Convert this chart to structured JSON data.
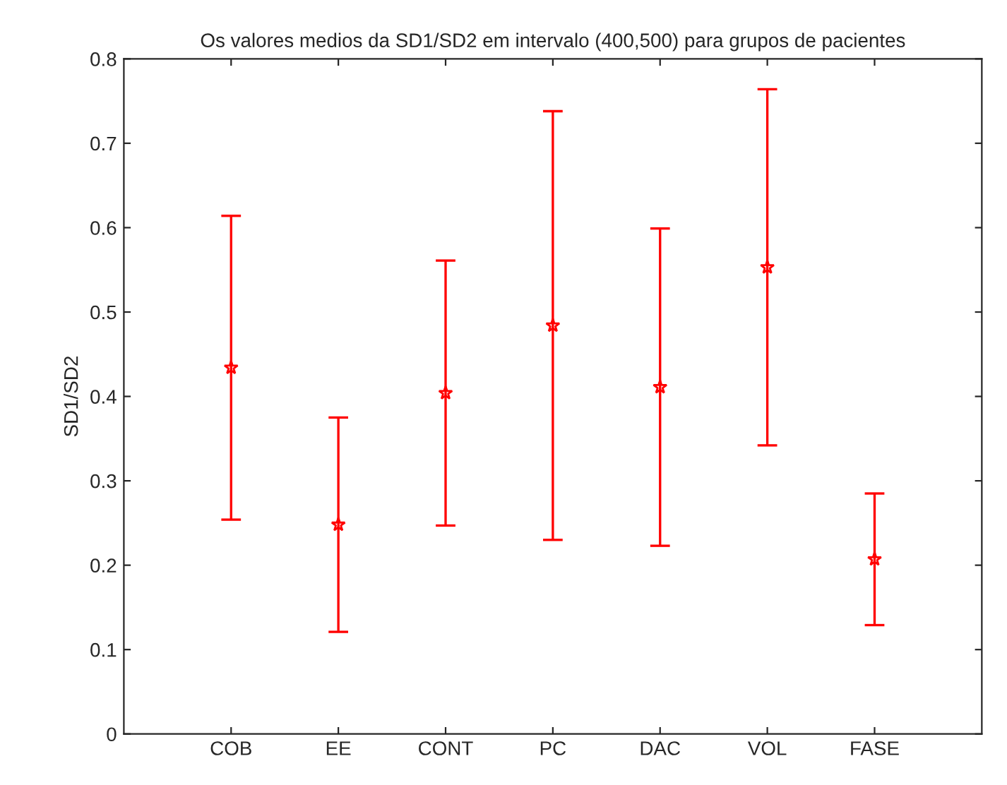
{
  "chart_data": {
    "type": "scatter",
    "title": "Os valores medios da SD1/SD2 em intervalo (400,500) para grupos de pacientes",
    "ylabel": "SD1/SD2",
    "categories": [
      "COB",
      "EE",
      "CONT",
      "PC",
      "DAC",
      "VOL",
      "FASE"
    ],
    "series": [
      {
        "color": "#ff0000",
        "values": [
          0.434,
          0.248,
          0.404,
          0.484,
          0.411,
          0.553,
          0.207
        ],
        "errors": [
          0.18,
          0.127,
          0.157,
          0.254,
          0.188,
          0.211,
          0.078
        ]
      }
    ],
    "ylim": [
      0,
      0.8
    ],
    "yticks": [
      0,
      0.1,
      0.2,
      0.3,
      0.4,
      0.5,
      0.6,
      0.7,
      0.8
    ],
    "marker": "star",
    "grid": false,
    "legend": false
  }
}
